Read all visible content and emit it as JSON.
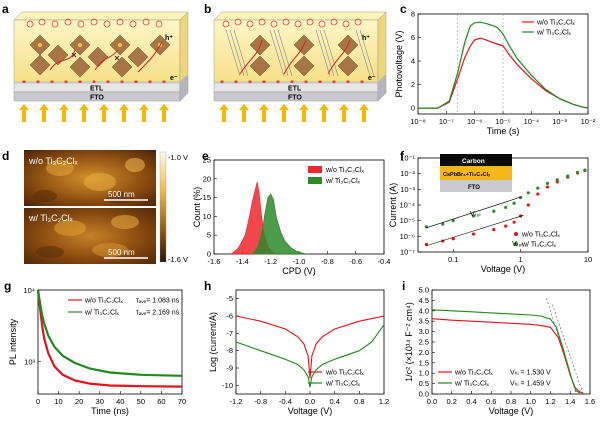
{
  "panels": {
    "a": {
      "letter": "a",
      "hole": "h⁺",
      "electron": "e⁻",
      "etl": "ETL",
      "fto": "FTO"
    },
    "b": {
      "letter": "b",
      "hole": "h⁺",
      "electron": "e⁻",
      "etl": "ETL",
      "fto": "FTO"
    },
    "d": {
      "letter": "d",
      "top_label": "w/o Ti₃C₂Clₓ",
      "bottom_label": "w/   Ti₃C₂Clₓ",
      "scalebar_top": "500 nm",
      "scalebar_bottom": "500 nm",
      "colorbar_max": "-1.0 V",
      "colorbar_min": "-1.6 V"
    },
    "f": {
      "inset_layers": [
        "Carbon",
        "CsPbBr₃+Ti₃C₂Clₓ",
        "FTO"
      ],
      "vtfl_top": "Vₜₒₗ",
      "vtfl_bottom": "Vₜₒₗ"
    }
  },
  "chart_data": [
    {
      "panel": "c",
      "type": "line",
      "xlabel": "Time (s)",
      "ylabel": "Photovoltage (V)",
      "xscale": "log",
      "xlim": [
        1e-08,
        0.01
      ],
      "xticks": [
        "10⁻⁸",
        "10⁻⁷",
        "10⁻⁶",
        "10⁻⁵",
        "10⁻⁴",
        "10⁻³",
        "10⁻²"
      ],
      "ylim": [
        -0.5,
        8
      ],
      "yticks": [
        0,
        2,
        4,
        6,
        8
      ],
      "legend": "top-right",
      "series": [
        {
          "name": "w/o Ti₃C₂Clₓ",
          "color": "#e8101a",
          "points": [
            [
              -7.3,
              0
            ],
            [
              -6.9,
              0.5
            ],
            [
              -6.6,
              2.5
            ],
            [
              -6.35,
              4.3
            ],
            [
              -6.15,
              5.3
            ],
            [
              -6.0,
              5.8
            ],
            [
              -5.8,
              5.95
            ],
            [
              -5.6,
              5.8
            ],
            [
              -5.4,
              5.6
            ],
            [
              -5.2,
              5.45
            ],
            [
              -5.0,
              5.3
            ],
            [
              -4.8,
              4.6
            ],
            [
              -4.5,
              3.7
            ],
            [
              -4.0,
              2.5
            ],
            [
              -3.5,
              1.5
            ],
            [
              -3.0,
              0.8
            ],
            [
              -2.5,
              0.3
            ],
            [
              -2.2,
              0.1
            ]
          ]
        },
        {
          "name": "w/   Ti₃C₂Clₓ",
          "color": "#1f8a1f",
          "points": [
            [
              -7.3,
              0
            ],
            [
              -6.9,
              0.6
            ],
            [
              -6.6,
              3.0
            ],
            [
              -6.35,
              5.6
            ],
            [
              -6.15,
              7.0
            ],
            [
              -6.0,
              7.25
            ],
            [
              -5.8,
              7.3
            ],
            [
              -5.6,
              7.2
            ],
            [
              -5.4,
              7.05
            ],
            [
              -5.2,
              6.85
            ],
            [
              -5.0,
              6.3
            ],
            [
              -4.8,
              5.4
            ],
            [
              -4.5,
              4.2
            ],
            [
              -4.0,
              2.8
            ],
            [
              -3.5,
              1.6
            ],
            [
              -3.0,
              0.8
            ],
            [
              -2.5,
              0.3
            ],
            [
              -2.2,
              0.1
            ]
          ]
        }
      ]
    },
    {
      "panel": "e",
      "type": "area",
      "xlabel": "CPD (V)",
      "ylabel": "Count (%)",
      "xlim": [
        -1.6,
        -0.4
      ],
      "xticks": [
        -1.6,
        -1.4,
        -1.2,
        -1.0,
        -0.8,
        -0.6,
        -0.4
      ],
      "ylim": [
        0,
        25
      ],
      "yticks": [
        0,
        5,
        10,
        15,
        20,
        25
      ],
      "legend": "top-right",
      "series": [
        {
          "name": "w/o Ti₃C₂Clₓ",
          "color": "#f0262e",
          "points": [
            [
              -1.48,
              0
            ],
            [
              -1.43,
              1.5
            ],
            [
              -1.38,
              5
            ],
            [
              -1.35,
              10
            ],
            [
              -1.33,
              14
            ],
            [
              -1.31,
              17
            ],
            [
              -1.295,
              19.2
            ],
            [
              -1.28,
              16
            ],
            [
              -1.27,
              12
            ],
            [
              -1.25,
              6
            ],
            [
              -1.22,
              2
            ],
            [
              -1.19,
              0.5
            ],
            [
              -1.16,
              0
            ]
          ]
        },
        {
          "name": "w/   Ti₃C₂Clₓ",
          "color": "#2c8a2c",
          "points": [
            [
              -1.33,
              0
            ],
            [
              -1.29,
              2
            ],
            [
              -1.26,
              6
            ],
            [
              -1.24,
              11
            ],
            [
              -1.22,
              15
            ],
            [
              -1.2,
              16
            ],
            [
              -1.18,
              14.5
            ],
            [
              -1.16,
              10
            ],
            [
              -1.13,
              6
            ],
            [
              -1.1,
              3.5
            ],
            [
              -1.06,
              1.8
            ],
            [
              -1.02,
              0.8
            ],
            [
              -0.98,
              0.3
            ],
            [
              -0.94,
              0
            ]
          ]
        }
      ]
    },
    {
      "panel": "f",
      "type": "scatter",
      "xlabel": "Voltage (V)",
      "ylabel": "Current (A)",
      "xscale": "log",
      "yscale": "log",
      "xlim": [
        0.03,
        10
      ],
      "xticks": [
        "0.1",
        "1",
        "10"
      ],
      "ylim": [
        1e-07,
        0.1
      ],
      "yticks": [
        "10⁻⁷",
        "10⁻⁶",
        "10⁻⁵",
        "10⁻⁴",
        "10⁻³",
        "10⁻²",
        "10⁻¹"
      ],
      "legend": "bottom-right",
      "series": [
        {
          "name": "w/o Ti₃C₂Clₓ",
          "color": "#e8101a",
          "points": [
            [
              0.04,
              3e-07
            ],
            [
              0.07,
              5e-07
            ],
            [
              0.1,
              7e-07
            ],
            [
              0.2,
              1.4e-06
            ],
            [
              0.4,
              2.7e-06
            ],
            [
              0.6,
              4.5e-06
            ],
            [
              0.8,
              8e-06
            ],
            [
              1.0,
              2e-05
            ],
            [
              1.3,
              0.0001
            ],
            [
              1.8,
              0.0005
            ],
            [
              2.5,
              0.0014
            ],
            [
              3.5,
              0.003
            ],
            [
              5,
              0.006
            ],
            [
              7,
              0.011
            ],
            [
              9,
              0.016
            ]
          ]
        },
        {
          "name": "w/   Ti₃C₂Clₓ",
          "color": "#2c8a2c",
          "points": [
            [
              0.04,
              4e-06
            ],
            [
              0.07,
              6e-06
            ],
            [
              0.1,
              1e-05
            ],
            [
              0.2,
              2e-05
            ],
            [
              0.4,
              4e-05
            ],
            [
              0.6,
              7e-05
            ],
            [
              0.8,
              0.00013
            ],
            [
              1.0,
              0.0003
            ],
            [
              1.3,
              0.0006
            ],
            [
              1.8,
              0.0012
            ],
            [
              2.5,
              0.0024
            ],
            [
              3.5,
              0.004
            ],
            [
              5,
              0.007
            ],
            [
              7,
              0.012
            ],
            [
              9,
              0.017
            ]
          ]
        }
      ]
    },
    {
      "panel": "g",
      "type": "line",
      "xlabel": "Time (ns)",
      "ylabel": "PL intensity",
      "xlim": [
        0,
        70
      ],
      "xticks": [
        0,
        10,
        20,
        30,
        40,
        50,
        60,
        70
      ],
      "yscale": "log",
      "yticks": [
        "10³",
        "10⁴"
      ],
      "legend": "top-right",
      "series": [
        {
          "name": "w/o Ti₃C₂Clₓ",
          "tau_label": "τₐᵥₑ= 1.083 ns",
          "color": "#e8101a",
          "points": [
            [
              0,
              10000
            ],
            [
              1,
              5500
            ],
            [
              2,
              3200
            ],
            [
              3,
              2100
            ],
            [
              5,
              1300
            ],
            [
              8,
              850
            ],
            [
              12,
              650
            ],
            [
              18,
              540
            ],
            [
              25,
              490
            ],
            [
              35,
              460
            ],
            [
              50,
              450
            ],
            [
              70,
              445
            ]
          ]
        },
        {
          "name": "w/   Ti₃C₂Clₓ",
          "tau_label": "τₐᵥₑ= 2.169 ns",
          "color": "#1f8a1f",
          "points": [
            [
              0,
              10000
            ],
            [
              1,
              6500
            ],
            [
              2,
              4500
            ],
            [
              3,
              3400
            ],
            [
              5,
              2300
            ],
            [
              8,
              1600
            ],
            [
              12,
              1200
            ],
            [
              18,
              950
            ],
            [
              25,
              800
            ],
            [
              35,
              700
            ],
            [
              50,
              650
            ],
            [
              70,
              630
            ]
          ]
        }
      ]
    },
    {
      "panel": "h",
      "type": "line",
      "xlabel": "Voltage (V)",
      "ylabel": "Log (current/A)",
      "xlim": [
        -1.2,
        1.2
      ],
      "xticks": [
        -1.2,
        -0.8,
        -0.4,
        0.0,
        0.4,
        0.8,
        1.2
      ],
      "ylim": [
        -10.5,
        -4.5
      ],
      "yticks": [
        -10,
        -9,
        -8,
        -7,
        -6,
        -5
      ],
      "legend": "bottom-right",
      "series": [
        {
          "name": "w/o Ti₃C₂Clₓ",
          "color": "#e8101a",
          "points": [
            [
              -1.2,
              -6.0
            ],
            [
              -0.8,
              -6.3
            ],
            [
              -0.4,
              -6.75
            ],
            [
              -0.2,
              -7.2
            ],
            [
              -0.1,
              -7.6
            ],
            [
              -0.03,
              -8.3
            ],
            [
              0,
              -9.6
            ],
            [
              0.03,
              -8.3
            ],
            [
              0.1,
              -7.6
            ],
            [
              0.2,
              -7.2
            ],
            [
              0.4,
              -6.75
            ],
            [
              0.8,
              -6.3
            ],
            [
              1.2,
              -6.0
            ]
          ]
        },
        {
          "name": "w/   Ti₃C₂Clₓ",
          "color": "#1f8a1f",
          "points": [
            [
              -1.2,
              -7.5
            ],
            [
              -0.8,
              -8.0
            ],
            [
              -0.4,
              -8.5
            ],
            [
              -0.2,
              -8.8
            ],
            [
              -0.1,
              -9.1
            ],
            [
              -0.03,
              -9.5
            ],
            [
              0,
              -10.1
            ],
            [
              0.03,
              -9.5
            ],
            [
              0.1,
              -9.1
            ],
            [
              0.2,
              -8.8
            ],
            [
              0.4,
              -8.5
            ],
            [
              0.8,
              -8.0
            ],
            [
              1.0,
              -7.5
            ],
            [
              1.2,
              -6.5
            ]
          ]
        }
      ]
    },
    {
      "panel": "i",
      "type": "line",
      "xlabel": "Voltage (V)",
      "ylabel": "1/c² (×10¹⁴ F⁻² cm⁴)",
      "xlim": [
        0.0,
        1.6
      ],
      "xticks": [
        0.0,
        0.2,
        0.4,
        0.6,
        0.8,
        1.0,
        1.2,
        1.4,
        1.6
      ],
      "ylim": [
        0,
        5
      ],
      "yticks": [
        0,
        0.5,
        1.0,
        1.5,
        2.0,
        2.5,
        3.0,
        3.5,
        4.0,
        4.5,
        5.0
      ],
      "legend": "bottom-left",
      "series": [
        {
          "name": "w/o Ti₃C₂Clₓ",
          "vbi_label": "Vₕᵢ = 1.530 V",
          "color": "#e8101a",
          "points": [
            [
              0,
              3.62
            ],
            [
              0.2,
              3.55
            ],
            [
              0.4,
              3.5
            ],
            [
              0.6,
              3.45
            ],
            [
              0.8,
              3.4
            ],
            [
              1.0,
              3.35
            ],
            [
              1.1,
              3.3
            ],
            [
              1.2,
              3.2
            ],
            [
              1.28,
              2.7
            ],
            [
              1.35,
              1.7
            ],
            [
              1.4,
              0.9
            ],
            [
              1.45,
              0.3
            ],
            [
              1.5,
              0.1
            ],
            [
              1.53,
              0.05
            ]
          ]
        },
        {
          "name": "w/   Ti₃C₂Clₓ",
          "vbi_label": "Vₕᵢ = 1.459 V",
          "color": "#1f8a1f",
          "points": [
            [
              0,
              4.05
            ],
            [
              0.2,
              4.0
            ],
            [
              0.4,
              3.95
            ],
            [
              0.6,
              3.9
            ],
            [
              0.8,
              3.85
            ],
            [
              1.0,
              3.8
            ],
            [
              1.1,
              3.75
            ],
            [
              1.2,
              3.6
            ],
            [
              1.26,
              3.2
            ],
            [
              1.32,
              2.3
            ],
            [
              1.38,
              1.3
            ],
            [
              1.43,
              0.5
            ],
            [
              1.46,
              0.15
            ],
            [
              1.5,
              0.05
            ]
          ]
        }
      ]
    }
  ]
}
